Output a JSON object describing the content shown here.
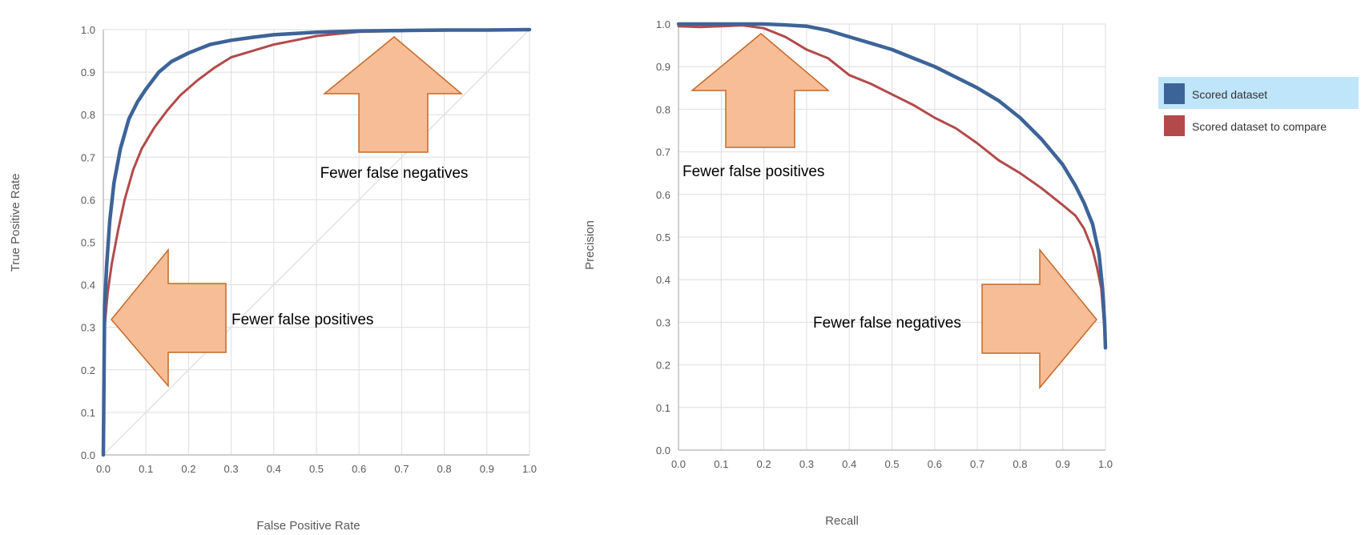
{
  "colors": {
    "series_1": "#3d6498",
    "series_2": "#b24a4b",
    "grid": "#dedede",
    "axis": "#bfbfbf",
    "diagonal": "#e3e3e3",
    "arrow_fill": "#f6bd96",
    "arrow_stroke": "#c46a2a",
    "legend_highlight": "#bfe5fb"
  },
  "legend": {
    "items": [
      {
        "label": "Scored dataset",
        "color": "#3d6498",
        "highlighted": true
      },
      {
        "label": "Scored dataset to compare",
        "color": "#b24a4b",
        "highlighted": false
      }
    ]
  },
  "chart_data": [
    {
      "type": "line",
      "name": "ROC curve",
      "title": "",
      "xlabel": "False Positive Rate",
      "ylabel": "True Positive Rate",
      "xlim": [
        0,
        1
      ],
      "ylim": [
        0,
        1
      ],
      "xticks": [
        "0.0",
        "0.1",
        "0.2",
        "0.3",
        "0.4",
        "0.5",
        "0.6",
        "0.7",
        "0.8",
        "0.9",
        "1.0"
      ],
      "yticks": [
        "0.0",
        "0.1",
        "0.2",
        "0.3",
        "0.4",
        "0.5",
        "0.6",
        "0.7",
        "0.8",
        "0.9",
        "1.0"
      ],
      "grid": true,
      "diagonal_reference": true,
      "series": [
        {
          "name": "Scored dataset",
          "x": [
            0,
            0.003,
            0.008,
            0.015,
            0.025,
            0.04,
            0.06,
            0.08,
            0.1,
            0.13,
            0.16,
            0.2,
            0.25,
            0.3,
            0.35,
            0.4,
            0.5,
            0.6,
            0.7,
            0.8,
            0.9,
            1.0
          ],
          "y": [
            0,
            0.35,
            0.45,
            0.55,
            0.64,
            0.72,
            0.79,
            0.83,
            0.86,
            0.9,
            0.925,
            0.945,
            0.965,
            0.975,
            0.982,
            0.988,
            0.994,
            0.997,
            0.998,
            0.999,
            0.999,
            1.0
          ]
        },
        {
          "name": "Scored dataset to compare",
          "x": [
            0,
            0.003,
            0.01,
            0.02,
            0.035,
            0.05,
            0.07,
            0.09,
            0.12,
            0.15,
            0.18,
            0.22,
            0.26,
            0.3,
            0.35,
            0.4,
            0.45,
            0.5,
            0.55,
            0.6,
            0.7,
            0.8,
            0.9,
            1.0
          ],
          "y": [
            0,
            0.3,
            0.38,
            0.45,
            0.53,
            0.6,
            0.67,
            0.72,
            0.77,
            0.81,
            0.845,
            0.88,
            0.91,
            0.935,
            0.95,
            0.965,
            0.975,
            0.985,
            0.99,
            0.995,
            0.997,
            0.998,
            0.999,
            1.0
          ]
        }
      ],
      "annotations": [
        {
          "text": "Fewer false negatives",
          "arrow": "up"
        },
        {
          "text": "Fewer false positives",
          "arrow": "left"
        }
      ]
    },
    {
      "type": "line",
      "name": "Precision-Recall curve",
      "title": "",
      "xlabel": "Recall",
      "ylabel": "Precision",
      "xlim": [
        0,
        1
      ],
      "ylim": [
        0,
        1
      ],
      "xticks": [
        "0.0",
        "0.1",
        "0.2",
        "0.3",
        "0.4",
        "0.5",
        "0.6",
        "0.7",
        "0.8",
        "0.9",
        "1.0"
      ],
      "yticks": [
        "0.0",
        "0.1",
        "0.2",
        "0.3",
        "0.4",
        "0.5",
        "0.6",
        "0.7",
        "0.8",
        "0.9",
        "1.0"
      ],
      "grid": true,
      "diagonal_reference": false,
      "series": [
        {
          "name": "Scored dataset",
          "x": [
            0,
            0.1,
            0.2,
            0.25,
            0.3,
            0.35,
            0.4,
            0.45,
            0.5,
            0.55,
            0.6,
            0.65,
            0.7,
            0.75,
            0.8,
            0.85,
            0.9,
            0.93,
            0.95,
            0.97,
            0.985,
            0.993,
            0.998,
            1.0
          ],
          "y": [
            1.0,
            1.0,
            1.0,
            0.998,
            0.995,
            0.985,
            0.97,
            0.955,
            0.94,
            0.92,
            0.9,
            0.875,
            0.85,
            0.82,
            0.78,
            0.73,
            0.67,
            0.62,
            0.58,
            0.53,
            0.46,
            0.38,
            0.3,
            0.24
          ]
        },
        {
          "name": "Scored dataset to compare",
          "x": [
            0,
            0.05,
            0.1,
            0.15,
            0.2,
            0.25,
            0.3,
            0.35,
            0.4,
            0.45,
            0.5,
            0.55,
            0.6,
            0.65,
            0.7,
            0.75,
            0.8,
            0.85,
            0.9,
            0.93,
            0.95,
            0.97,
            0.98,
            0.99,
            0.995,
            1.0
          ],
          "y": [
            0.995,
            0.993,
            0.995,
            0.997,
            0.99,
            0.97,
            0.94,
            0.92,
            0.88,
            0.86,
            0.835,
            0.81,
            0.78,
            0.755,
            0.72,
            0.68,
            0.65,
            0.615,
            0.575,
            0.55,
            0.52,
            0.47,
            0.43,
            0.38,
            0.32,
            0.25
          ]
        }
      ],
      "annotations": [
        {
          "text": "Fewer false positives",
          "arrow": "up"
        },
        {
          "text": "Fewer false negatives",
          "arrow": "right"
        }
      ]
    }
  ]
}
